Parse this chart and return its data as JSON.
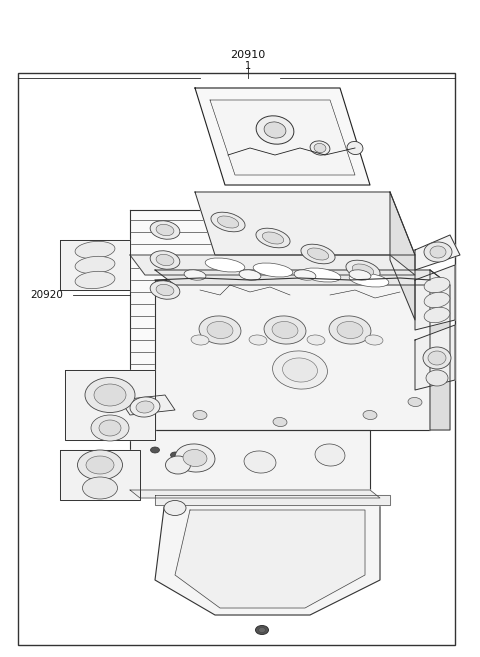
{
  "background_color": "#ffffff",
  "border_color": "#333333",
  "line_color": "#222222",
  "label_20910": "20910",
  "label_20910_sub": "1",
  "label_20920": "20920",
  "fig_width": 4.8,
  "fig_height": 6.57,
  "dpi": 100
}
